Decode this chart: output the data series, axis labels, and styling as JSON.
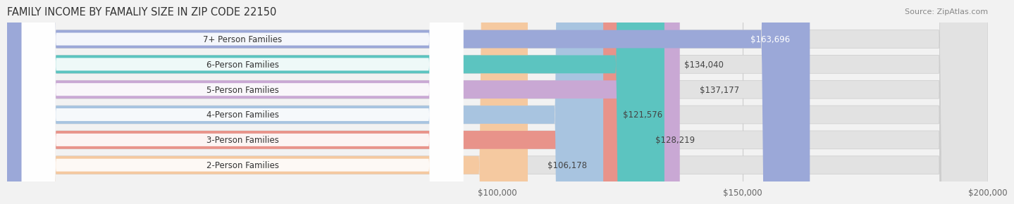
{
  "title": "FAMILY INCOME BY FAMALIY SIZE IN ZIP CODE 22150",
  "source": "Source: ZipAtlas.com",
  "categories": [
    "2-Person Families",
    "3-Person Families",
    "4-Person Families",
    "5-Person Families",
    "6-Person Families",
    "7+ Person Families"
  ],
  "values": [
    106178,
    128219,
    121576,
    137177,
    134040,
    163696
  ],
  "bar_colors": [
    "#f5c9a0",
    "#e8938a",
    "#a8c4e0",
    "#c9a8d4",
    "#5cc4c0",
    "#9ba8d8"
  ],
  "value_labels": [
    "$106,178",
    "$128,219",
    "$121,576",
    "$137,177",
    "$134,040",
    "$163,696"
  ],
  "value_label_inside": [
    false,
    false,
    false,
    false,
    false,
    true
  ],
  "xmin": 0,
  "xmax": 200000,
  "xticks": [
    100000,
    150000,
    200000
  ],
  "xtick_labels": [
    "$100,000",
    "$150,000",
    "$200,000"
  ],
  "background_color": "#f2f2f2",
  "bar_background_color": "#e2e2e2",
  "title_fontsize": 10.5,
  "source_fontsize": 8,
  "label_fontsize": 8.5,
  "value_fontsize": 8.5
}
